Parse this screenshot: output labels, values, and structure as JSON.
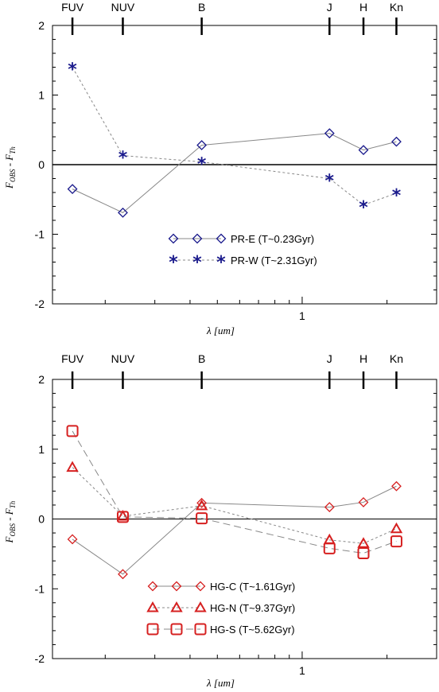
{
  "chart_data": [
    {
      "type": "line",
      "ylabel_main": "F",
      "ylabel_sub1": "OBS",
      "ylabel_mid": " - F",
      "ylabel_sub2": "Th",
      "xlabel_sym": "λ",
      "xlabel_unit": "[um]",
      "xscale": "log",
      "xlim": [
        0.13,
        3.0
      ],
      "ylim": [
        -2,
        2
      ],
      "yticks": [
        2,
        1,
        0,
        -1,
        -2
      ],
      "xtick_label": "1",
      "bands": [
        {
          "name": "FUV",
          "x": 0.153
        },
        {
          "name": "NUV",
          "x": 0.231
        },
        {
          "name": "B",
          "x": 0.44
        },
        {
          "name": "J",
          "x": 1.25
        },
        {
          "name": "H",
          "x": 1.65
        },
        {
          "name": "Kn",
          "x": 2.16
        }
      ],
      "series": [
        {
          "name": "PR-E (T~0.23Gyr)",
          "marker": "diamond",
          "line": "solid",
          "color": "#1a1a8c",
          "x": [
            0.153,
            0.231,
            0.44,
            1.25,
            1.65,
            2.16
          ],
          "y": [
            -0.35,
            -0.69,
            0.28,
            0.45,
            0.21,
            0.33
          ]
        },
        {
          "name": "PR-W (T~2.31Gyr)",
          "marker": "asterisk",
          "line": "dotted",
          "color": "#1a1a8c",
          "x": [
            0.153,
            0.231,
            0.44,
            1.25,
            1.65,
            2.16
          ],
          "y": [
            1.4,
            0.13,
            0.04,
            -0.2,
            -0.58,
            -0.41
          ]
        }
      ],
      "legend": "center-bottom"
    },
    {
      "type": "line",
      "ylabel_main": "F",
      "ylabel_sub1": "OBS",
      "ylabel_mid": " - F",
      "ylabel_sub2": "Th",
      "xlabel_sym": "λ",
      "xlabel_unit": "[um]",
      "xscale": "log",
      "xlim": [
        0.13,
        3.0
      ],
      "ylim": [
        -2,
        2
      ],
      "yticks": [
        2,
        1,
        0,
        -1,
        -2
      ],
      "xtick_label": "1",
      "bands": [
        {
          "name": "FUV",
          "x": 0.153
        },
        {
          "name": "NUV",
          "x": 0.231
        },
        {
          "name": "B",
          "x": 0.44
        },
        {
          "name": "J",
          "x": 1.25
        },
        {
          "name": "H",
          "x": 1.65
        },
        {
          "name": "Kn",
          "x": 2.16
        }
      ],
      "series": [
        {
          "name": "HG-C (T~1.61Gyr)",
          "marker": "diamond",
          "line": "solid",
          "color": "#d62020",
          "x": [
            0.153,
            0.231,
            0.44,
            1.25,
            1.65,
            2.16
          ],
          "y": [
            -0.29,
            -0.79,
            0.23,
            0.17,
            0.24,
            0.47
          ]
        },
        {
          "name": "HG-N (T~9.37Gyr)",
          "marker": "triangle",
          "line": "dotted",
          "color": "#d62020",
          "x": [
            0.153,
            0.231,
            0.44,
            1.25,
            1.65,
            2.16
          ],
          "y": [
            0.74,
            0.04,
            0.19,
            -0.3,
            -0.35,
            -0.14
          ]
        },
        {
          "name": "HG-S (T~5.62Gyr)",
          "marker": "square",
          "line": "dashed",
          "color": "#d62020",
          "x": [
            0.153,
            0.231,
            0.44,
            1.25,
            1.65,
            2.16
          ],
          "y": [
            1.26,
            0.03,
            0.01,
            -0.42,
            -0.49,
            -0.32
          ]
        }
      ],
      "legend": "center-bottom"
    }
  ]
}
